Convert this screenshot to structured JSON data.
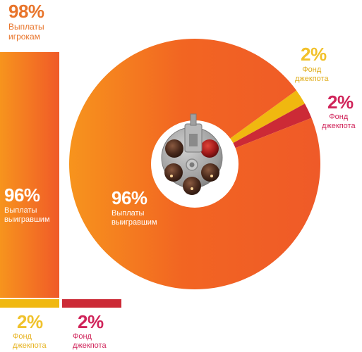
{
  "summary": {
    "percent": "98%",
    "label_line1": "Выплаты",
    "label_line2": "игрокам"
  },
  "bars": {
    "main": {
      "percent": "96%",
      "label_line1": "Выплаты",
      "label_line2": "выигравшим"
    },
    "jackpot1": {
      "percent": "2%",
      "label_line1": "Фонд",
      "label_line2": "джекпота"
    },
    "jackpot2": {
      "percent": "2%",
      "label_line1": "Фонд",
      "label_line2": "джекпота"
    }
  },
  "pie": {
    "main": {
      "percent": "96%",
      "label_line1": "Выплаты",
      "label_line2": "выигравшим"
    },
    "jackpot1": {
      "percent": "2%",
      "label_line1": "Фонд",
      "label_line2": "джекпота"
    },
    "jackpot2": {
      "percent": "2%",
      "label_line1": "Фонд",
      "label_line2": "джекпота"
    }
  },
  "chart_data": [
    {
      "type": "bar",
      "categories": [
        "Выплаты выигравшим",
        "Фонд джекпота",
        "Фонд джекпота"
      ],
      "values": [
        96,
        2,
        2
      ],
      "total_label": "98% Выплаты игрокам",
      "colors": [
        "#f26522",
        "#f0b810",
        "#cc2a36"
      ]
    },
    {
      "type": "pie",
      "categories": [
        "Выплаты выигравшим",
        "Фонд джекпота",
        "Фонд джекпота"
      ],
      "values": [
        96,
        2,
        2
      ],
      "colors": [
        "#f26522",
        "#f0b810",
        "#cc2a36"
      ]
    }
  ],
  "icons": {
    "center": "revolver-cylinder-icon"
  }
}
